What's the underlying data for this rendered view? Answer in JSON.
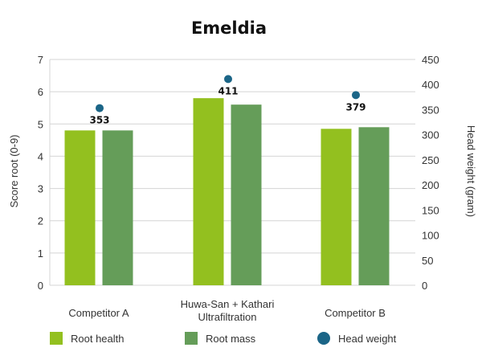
{
  "chart_data": {
    "type": "bar",
    "title": "Emeldia",
    "categories": [
      "Competitor A",
      "Huwa-San + Kathari|Ultrafiltration",
      "Competitor B"
    ],
    "y_left": {
      "label": "Score root (0-9)",
      "lim": [
        0,
        7
      ],
      "ticks": [
        "0",
        "1",
        "2",
        "3",
        "4",
        "5",
        "6",
        "7"
      ]
    },
    "y_right": {
      "label": "Head weight (gram)",
      "lim": [
        0,
        450
      ],
      "ticks": [
        "0",
        "50",
        "100",
        "150",
        "200",
        "250",
        "300",
        "350",
        "400",
        "450"
      ]
    },
    "series": [
      {
        "name": "Root health",
        "axis": "left",
        "kind": "bar",
        "color": "#93c01f",
        "values": [
          4.8,
          5.8,
          4.85
        ]
      },
      {
        "name": "Root mass",
        "axis": "left",
        "kind": "bar",
        "color": "#659d59",
        "values": [
          4.8,
          5.6,
          4.9
        ]
      },
      {
        "name": "Head weight",
        "axis": "right",
        "kind": "point",
        "color": "#1b6587",
        "values": [
          353,
          411,
          379
        ],
        "labels": [
          "353",
          "411",
          "379"
        ]
      }
    ],
    "grid": true,
    "legend_position": "bottom"
  }
}
